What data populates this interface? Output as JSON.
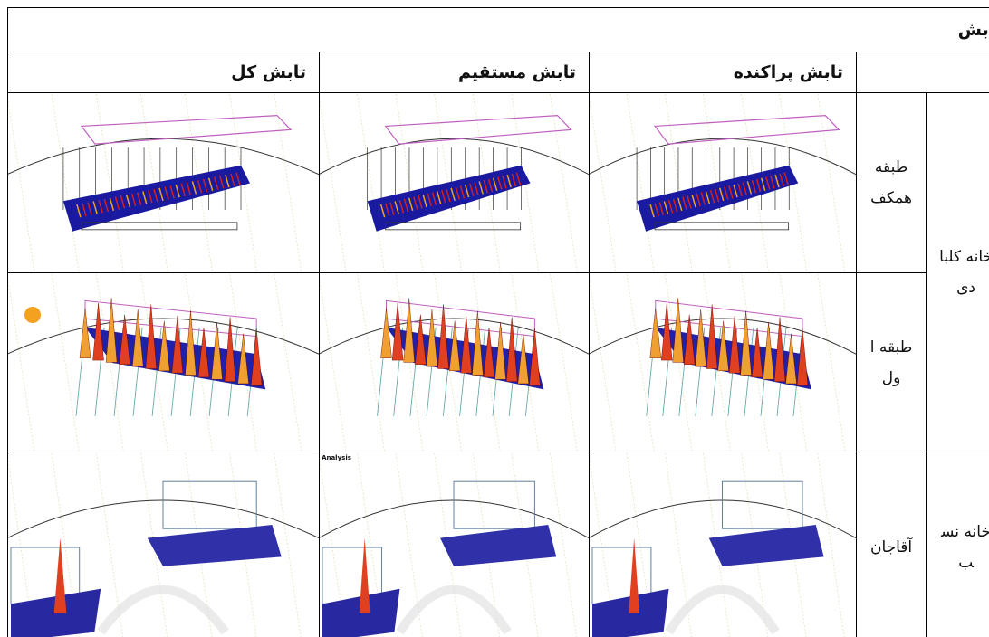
{
  "table": {
    "title": "تابش",
    "columns": [
      "تابش پراکنده",
      "تابش مستقیم",
      "تابش کل"
    ],
    "rows": [
      {
        "building": "خانه کلبادی",
        "floor": "طبقه همکف"
      },
      {
        "floor": "طبقه اول"
      },
      {
        "building": "خانه نسب",
        "floor": "آقاجان"
      }
    ]
  },
  "images": {
    "analysis_label": "Analysis"
  }
}
